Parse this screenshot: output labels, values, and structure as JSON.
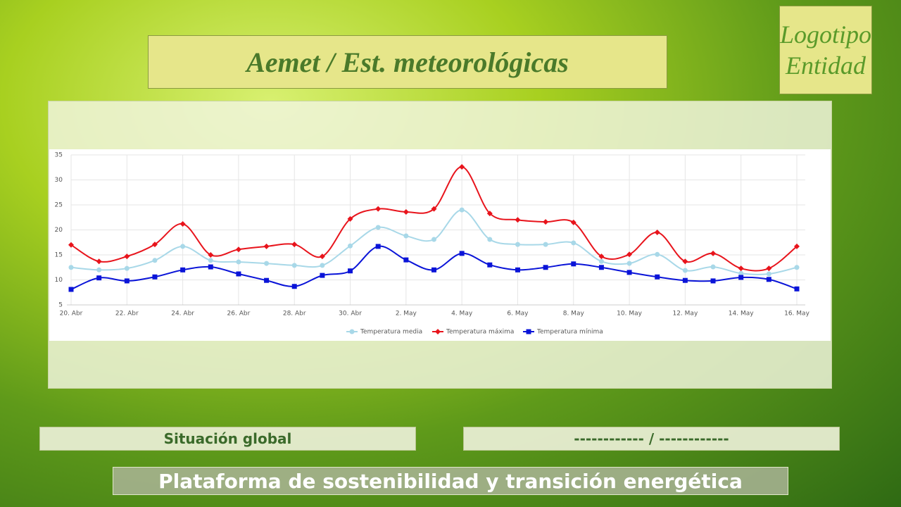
{
  "header": {
    "title": "Aemet / Est. meteorológicas",
    "logo": [
      "Logotipo",
      "Entidad"
    ]
  },
  "chart_data": {
    "type": "line",
    "categories": [
      "20. Abr",
      null,
      "22. Abr",
      null,
      "24. Abr",
      null,
      "26. Abr",
      null,
      "28. Abr",
      null,
      "30. Abr",
      null,
      "2. May",
      null,
      "4. May",
      null,
      "6. May",
      null,
      "8. May",
      null,
      "10. May",
      null,
      "12. May",
      null,
      "14. May",
      null,
      "16. May"
    ],
    "series": [
      {
        "name": "Temperatura media",
        "color": "#a8d8e8",
        "marker": "circle",
        "values": [
          12.5,
          12,
          12.3,
          13.9,
          16.7,
          13.9,
          13.6,
          13.3,
          12.9,
          12.9,
          16.8,
          20.5,
          18.8,
          18.1,
          24,
          18.1,
          17.1,
          17.1,
          17.4,
          13.7,
          13.3,
          15.1,
          11.9,
          12.6,
          11.3,
          11.2,
          12.5
        ]
      },
      {
        "name": "Temperatura máxima",
        "color": "#e8141c",
        "marker": "diamond",
        "values": [
          17,
          13.7,
          14.7,
          17.1,
          21.2,
          15,
          16.1,
          16.7,
          17.1,
          14.7,
          22.2,
          24.2,
          23.6,
          24.2,
          32.6,
          23.3,
          22,
          21.6,
          21.5,
          14.7,
          15.1,
          19.5,
          13.7,
          15.3,
          12.3,
          12.3,
          16.7
        ]
      },
      {
        "name": "Temperatura mínima",
        "color": "#0a14d8",
        "marker": "square",
        "values": [
          8.1,
          10.4,
          9.8,
          10.6,
          12,
          12.6,
          11.2,
          9.9,
          8.7,
          10.9,
          11.8,
          16.7,
          14,
          12,
          15.3,
          13,
          12,
          12.5,
          13.2,
          12.5,
          11.5,
          10.6,
          9.9,
          9.8,
          10.5,
          10.1,
          8.2
        ]
      }
    ],
    "ylim": [
      5,
      35
    ],
    "yticks": [
      5,
      10,
      15,
      20,
      25,
      30,
      35
    ],
    "grid": true,
    "legend": "bottom"
  },
  "footer": {
    "status_label": "Situación global",
    "status_value": "------------ / ------------",
    "banner": "Plataforma de sostenibilidad y transición energética"
  }
}
